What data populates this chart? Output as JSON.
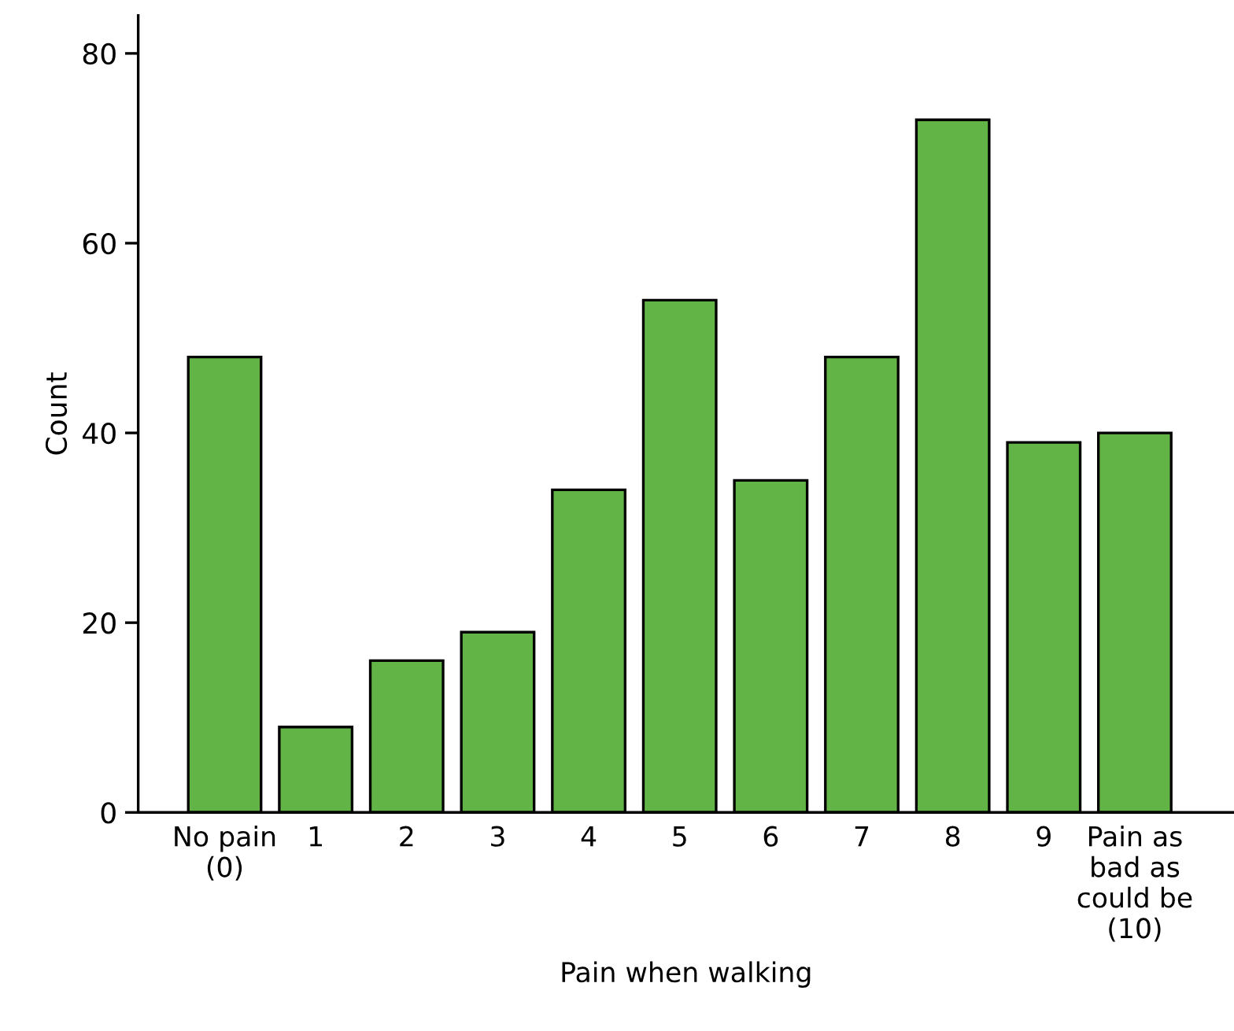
{
  "chart_data": {
    "type": "bar",
    "xlabel": "Pain when walking",
    "ylabel": "Count",
    "categories": [
      "No pain\n(0)",
      "1",
      "2",
      "3",
      "4",
      "5",
      "6",
      "7",
      "8",
      "9",
      "Pain as\nbad as\ncould be\n(10)"
    ],
    "values": [
      48,
      9,
      16,
      19,
      34,
      54,
      35,
      48,
      73,
      39,
      40
    ],
    "color": "#62b446",
    "ylim": [
      0,
      84
    ],
    "yticks": [
      0,
      20,
      40,
      60,
      80
    ],
    "grid": false,
    "legend": false
  }
}
